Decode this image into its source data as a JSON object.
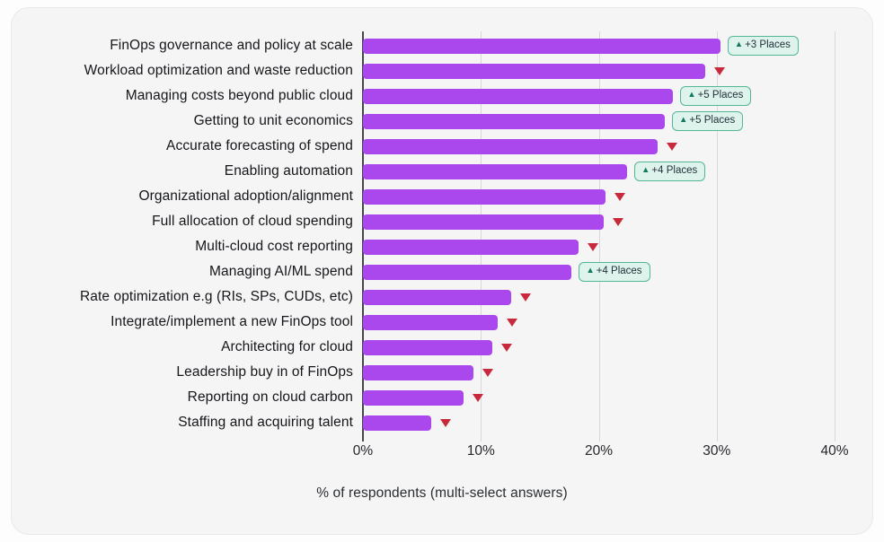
{
  "chart_data": {
    "type": "bar",
    "orientation": "horizontal",
    "title": "",
    "xlabel": "% of respondents (multi-select answers)",
    "ylabel": "",
    "xlim": [
      0,
      40
    ],
    "x_ticks": [
      "0%",
      "10%",
      "20%",
      "30%",
      "40%"
    ],
    "grid": "vertical",
    "legend": "none",
    "badge_up_symbol": "▲",
    "rows": [
      {
        "label": "FinOps governance and policy at scale",
        "value": 30.3,
        "movement": "up",
        "badge": "+3 Places"
      },
      {
        "label": "Workload optimization and waste reduction",
        "value": 29.0,
        "movement": "down"
      },
      {
        "label": "Managing costs beyond public cloud",
        "value": 26.3,
        "movement": "up",
        "badge": "+5 Places"
      },
      {
        "label": "Getting to unit economics",
        "value": 25.6,
        "movement": "up",
        "badge": "+5 Places"
      },
      {
        "label": "Accurate forecasting of spend",
        "value": 25.0,
        "movement": "down"
      },
      {
        "label": "Enabling automation",
        "value": 22.4,
        "movement": "up",
        "badge": "+4 Places"
      },
      {
        "label": "Organizational adoption/alignment",
        "value": 20.6,
        "movement": "down"
      },
      {
        "label": "Full allocation of cloud spending",
        "value": 20.4,
        "movement": "down"
      },
      {
        "label": "Multi-cloud cost reporting",
        "value": 18.3,
        "movement": "down"
      },
      {
        "label": "Managing AI/ML spend",
        "value": 17.7,
        "movement": "up",
        "badge": "+4 Places"
      },
      {
        "label": "Rate optimization e.g (RIs, SPs, CUDs, etc)",
        "value": 12.6,
        "movement": "down"
      },
      {
        "label": "Integrate/implement a new FinOps tool",
        "value": 11.4,
        "movement": "down"
      },
      {
        "label": "Architecting for cloud",
        "value": 11.0,
        "movement": "down"
      },
      {
        "label": "Leadership buy in of FinOps",
        "value": 9.4,
        "movement": "down"
      },
      {
        "label": "Reporting on cloud carbon",
        "value": 8.5,
        "movement": "down"
      },
      {
        "label": "Staffing and acquiring talent",
        "value": 5.8,
        "movement": "down"
      }
    ],
    "colors": {
      "bar": "#aa48ee",
      "badge_bg": "#def3ec",
      "badge_border": "#53b795",
      "badge_triangle": "#117a5e",
      "badge_text": "#22313a",
      "down_triangle": "#c9293c",
      "gridline": "#d8d8db",
      "axis_line": "#46474c",
      "card_bg": "#f5f5f6"
    }
  }
}
